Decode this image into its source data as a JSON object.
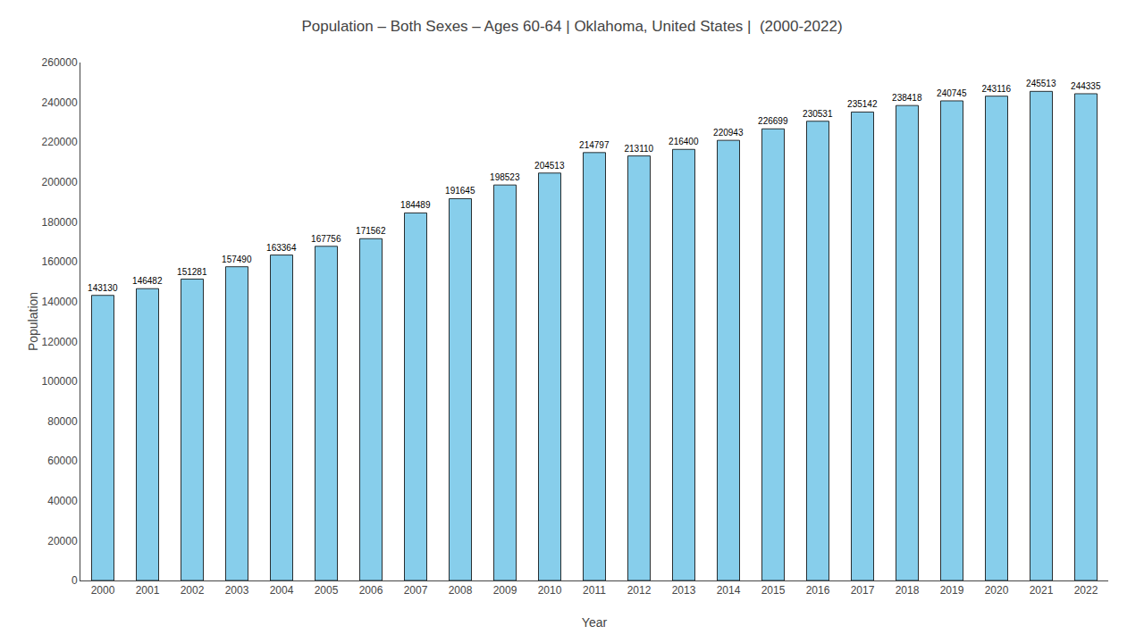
{
  "chart_data": {
    "type": "bar",
    "title": "Population – Both Sexes – Ages 60-64 | Oklahoma, United States |  (2000-2022)",
    "x_label": "Year",
    "y_label": "Population",
    "categories": [
      "2000",
      "2001",
      "2002",
      "2003",
      "2004",
      "2005",
      "2006",
      "2007",
      "2008",
      "2009",
      "2010",
      "2011",
      "2012",
      "2013",
      "2014",
      "2015",
      "2016",
      "2017",
      "2018",
      "2019",
      "2020",
      "2021",
      "2022"
    ],
    "values": [
      143130,
      146482,
      151281,
      157490,
      163364,
      167756,
      171562,
      184489,
      191645,
      198523,
      204513,
      214797,
      213110,
      216400,
      220943,
      226699,
      230531,
      235142,
      238418,
      240745,
      243116,
      245513,
      244335
    ],
    "color": "#87CEEB",
    "ylim": [
      0,
      260000
    ],
    "yticks": [
      0,
      20000,
      40000,
      60000,
      80000,
      100000,
      120000,
      140000,
      160000,
      180000,
      200000,
      220000,
      240000,
      260000
    ],
    "grid": false,
    "data_labels": true
  }
}
